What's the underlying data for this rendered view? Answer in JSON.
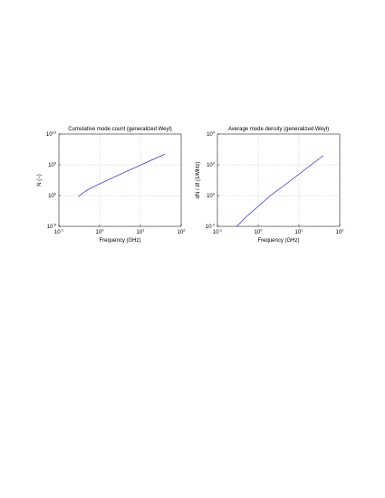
{
  "chart_data": [
    {
      "type": "line",
      "title": "Cumulative mode count (generalized Weyl)",
      "x_label": "Frequency (GHz)",
      "y_label": "N (−)",
      "log_x": true,
      "log_y": true,
      "grid": true,
      "xlim": [
        0.1,
        100
      ],
      "xticks": [
        {
          "value": 0.1,
          "label": "10",
          "exponent": "-1"
        },
        {
          "value": 1,
          "label": "10",
          "exponent": "0"
        },
        {
          "value": 10,
          "label": "10",
          "exponent": "1"
        },
        {
          "value": 100,
          "label": "10",
          "exponent": "2"
        }
      ],
      "ylim": [
        1e-05,
        10000000000
      ],
      "yticks": [
        {
          "value": 1e-05,
          "label": "10",
          "exponent": "-5"
        },
        {
          "value": 1,
          "label": "10",
          "exponent": "0"
        },
        {
          "value": 100000,
          "label": "10",
          "exponent": "5"
        },
        {
          "value": 10000000000,
          "label": "10",
          "exponent": "10"
        }
      ],
      "x": [
        0.3,
        0.4,
        0.5,
        0.7,
        1,
        2,
        5,
        10,
        20,
        40
      ],
      "series": [
        {
          "name": "N",
          "color": "#2020ff",
          "values": [
            0.7,
            3,
            8,
            25,
            80,
            700,
            11000,
            85000,
            700000,
            5500000
          ]
        }
      ]
    },
    {
      "type": "line",
      "title": "Average mode density (generalized Weyl)",
      "x_label": "Frequency (GHz)",
      "y_label": "dN / df (1/MHz)",
      "log_x": true,
      "log_y": true,
      "grid": true,
      "xlim": [
        0.1,
        100
      ],
      "xticks": [
        {
          "value": 0.1,
          "label": "10",
          "exponent": "-1"
        },
        {
          "value": 1,
          "label": "10",
          "exponent": "0"
        },
        {
          "value": 10,
          "label": "10",
          "exponent": "1"
        },
        {
          "value": 100,
          "label": "10",
          "exponent": "2"
        }
      ],
      "ylim": [
        0.01,
        10000
      ],
      "yticks": [
        {
          "value": 0.01,
          "label": "10",
          "exponent": "-2"
        },
        {
          "value": 1,
          "label": "10",
          "exponent": "0"
        },
        {
          "value": 100,
          "label": "10",
          "exponent": "2"
        },
        {
          "value": 10000,
          "label": "10",
          "exponent": "4"
        }
      ],
      "x": [
        0.3,
        0.5,
        1,
        2,
        5,
        10,
        20,
        40
      ],
      "series": [
        {
          "name": "dN/df",
          "color": "#2020ff",
          "values": [
            0.01,
            0.04,
            0.2,
            1,
            6,
            25,
            100,
            400
          ]
        }
      ]
    }
  ]
}
